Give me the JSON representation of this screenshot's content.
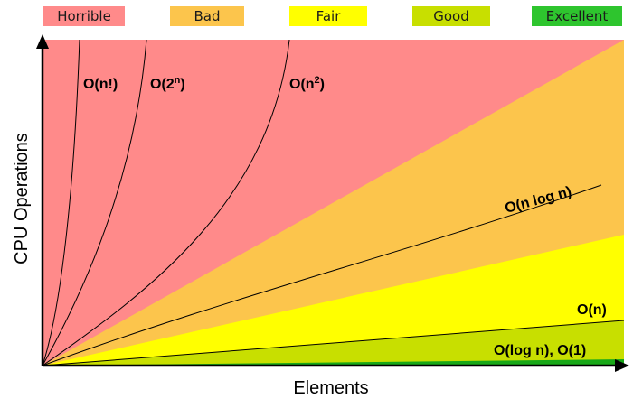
{
  "legend": [
    {
      "label": "Horrible",
      "color": "#ff8a8a"
    },
    {
      "label": "Bad",
      "color": "#fcc54c"
    },
    {
      "label": "Fair",
      "color": "#ffff00"
    },
    {
      "label": "Good",
      "color": "#c8df00"
    },
    {
      "label": "Excellent",
      "color": "#2ec52e"
    }
  ],
  "axes": {
    "x_label": "Elements",
    "y_label": "CPU Operations"
  },
  "curves": [
    {
      "label": "O(n!)",
      "sup": "",
      "complexity": "factorial"
    },
    {
      "label": "O(2",
      "sup": "n",
      "suffix": ")",
      "complexity": "exponential"
    },
    {
      "label": "O(n",
      "sup": "2",
      "suffix": ")",
      "complexity": "quadratic"
    },
    {
      "label": "O(n log n)",
      "sup": "",
      "complexity": "linearithmic"
    },
    {
      "label": "O(n)",
      "sup": "",
      "complexity": "linear"
    },
    {
      "label": "O(log n), O(1)",
      "sup": "",
      "complexity": "logarithmic-constant"
    }
  ],
  "region_colors": {
    "horrible": "#ff8a8a",
    "bad": "#fcc54c",
    "fair": "#ffff00",
    "good": "#c8df00",
    "excellent": "#18a818"
  }
}
